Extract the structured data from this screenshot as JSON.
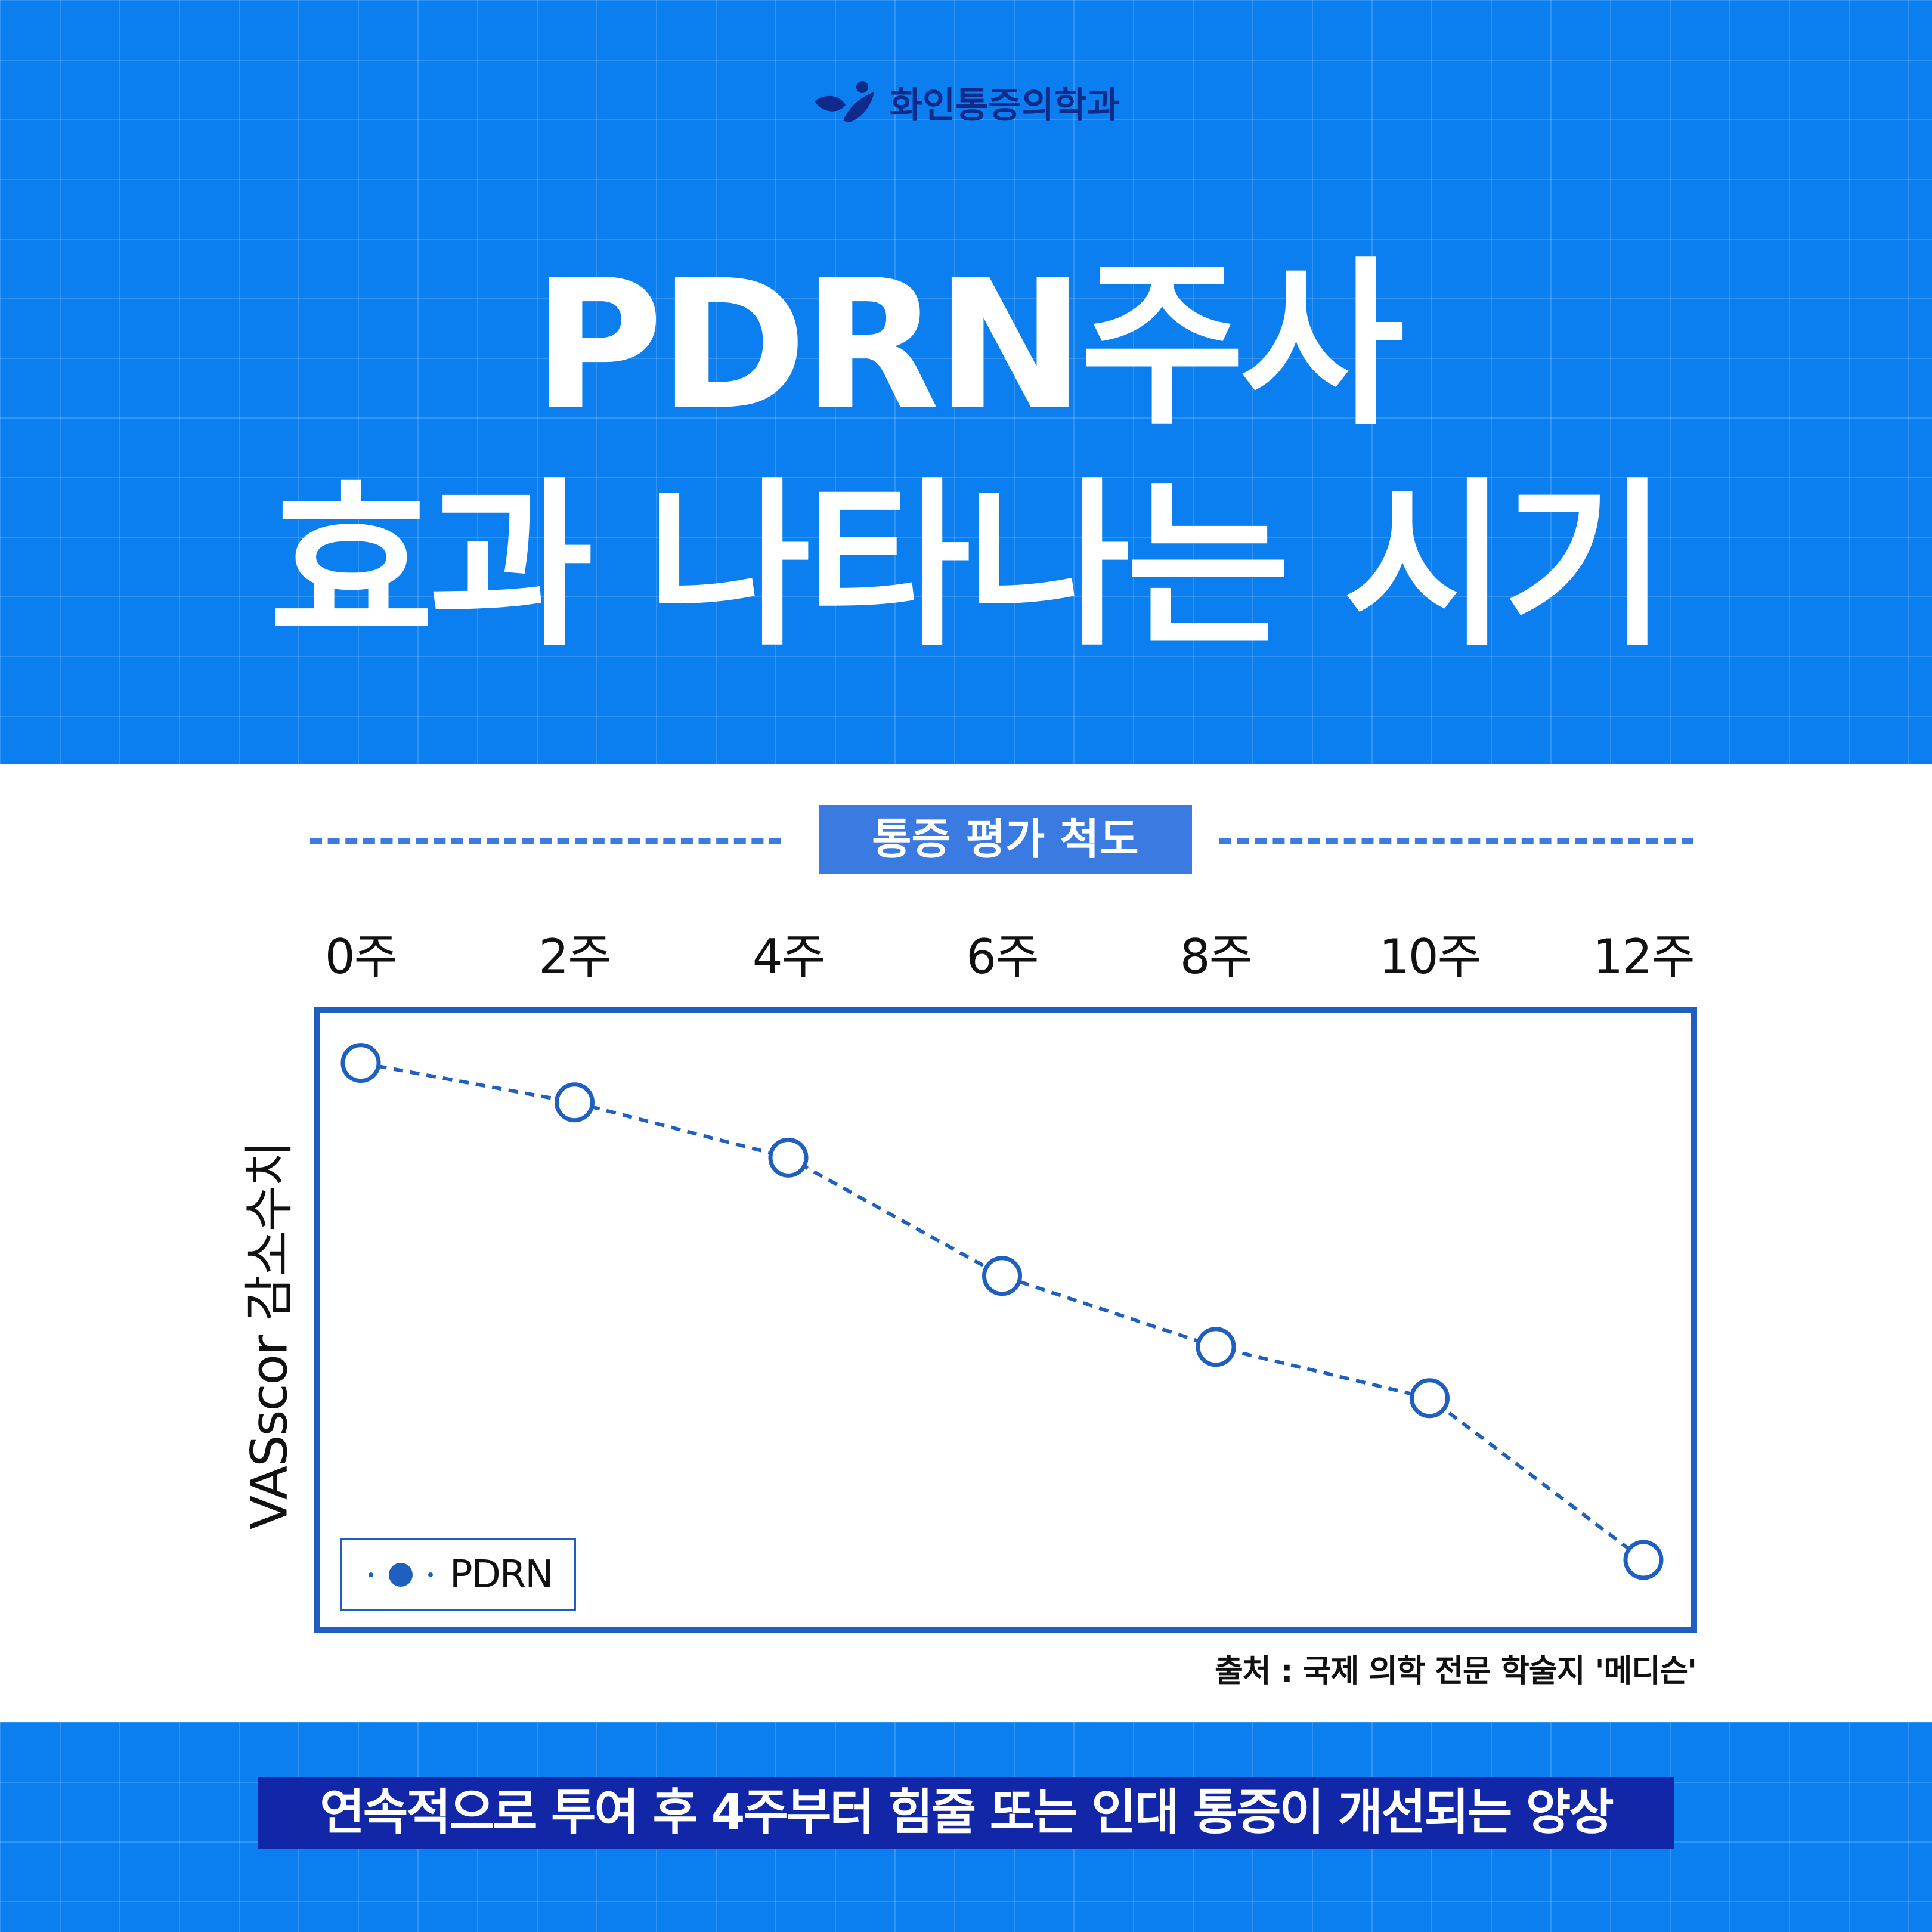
{
  "brand": {
    "name": "화인통증의학과",
    "logo_icon": "leaf-person-icon",
    "logo_color": "#0f2a8a"
  },
  "title": {
    "line1": "PDRN주사",
    "line2": "효과 나타나는 시기"
  },
  "section_label": "통증 평가 척도",
  "source": "출처 : 국제 의학 전문 학술지 '메디슨'",
  "bottom_banner": "연속적으로 투여 후  4주부터 힘줄 또는 인대 통증이 개선되는 양상",
  "colors": {
    "band": "#0b7ff0",
    "accent": "#1f5fc0",
    "banner": "#1227a8"
  },
  "chart_data": {
    "type": "line",
    "title": "",
    "xlabel": "",
    "ylabel": "VASscor 감소수치",
    "categories": [
      "0주",
      "2주",
      "4주",
      "6주",
      "8주",
      "10주",
      "12주"
    ],
    "series": [
      {
        "name": "PDRN",
        "values": [
          9.2,
          8.7,
          8.0,
          6.5,
          5.6,
          4.95,
          2.9
        ]
      }
    ],
    "ylim": [
      2.0,
      9.9
    ],
    "line_style": "dashed",
    "marker": "hollow-circle",
    "grid": false,
    "legend_position": "bottom-left"
  }
}
